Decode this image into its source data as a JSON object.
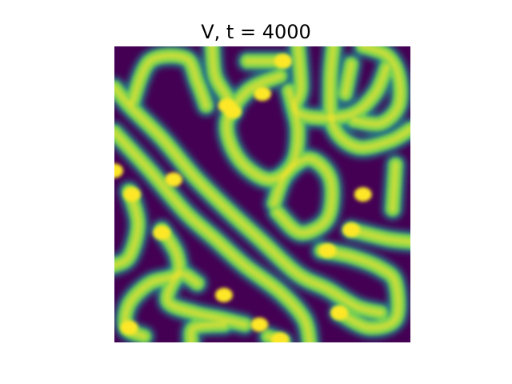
{
  "chart_data": {
    "type": "heatmap",
    "title": "V, t = 4000",
    "colormap": "viridis",
    "colors": {
      "low": "#440154",
      "mid": "#21918c",
      "high": "#fde725",
      "stripe": "#7ad151",
      "background": "#ffffff"
    },
    "axes_visible": false,
    "grid": false,
    "xlim": [
      0,
      1
    ],
    "ylim": [
      0,
      1
    ],
    "stripes": [
      [
        [
          0.06,
          0.19
        ],
        [
          0.12,
          0.05
        ],
        [
          0.24,
          0.04
        ],
        [
          0.28,
          0.12
        ],
        [
          0.31,
          0.2
        ]
      ],
      [
        [
          0.33,
          0.0
        ],
        [
          0.34,
          0.1
        ],
        [
          0.38,
          0.17
        ],
        [
          0.4,
          0.22
        ]
      ],
      [
        [
          0.45,
          0.05
        ],
        [
          0.57,
          0.05
        ]
      ],
      [
        [
          0.0,
          0.29
        ],
        [
          0.12,
          0.42
        ],
        [
          0.24,
          0.56
        ],
        [
          0.34,
          0.65
        ],
        [
          0.44,
          0.74
        ],
        [
          0.56,
          0.83
        ],
        [
          0.64,
          0.92
        ],
        [
          0.66,
          1.0
        ]
      ],
      [
        [
          0.0,
          0.14
        ],
        [
          0.06,
          0.21
        ],
        [
          0.16,
          0.31
        ],
        [
          0.27,
          0.44
        ],
        [
          0.38,
          0.55
        ],
        [
          0.5,
          0.66
        ],
        [
          0.62,
          0.77
        ],
        [
          0.72,
          0.82
        ],
        [
          0.82,
          0.88
        ],
        [
          0.9,
          0.9
        ]
      ],
      [
        [
          0.56,
          0.1
        ],
        [
          0.45,
          0.15
        ],
        [
          0.38,
          0.26
        ],
        [
          0.42,
          0.38
        ],
        [
          0.52,
          0.45
        ],
        [
          0.6,
          0.4
        ],
        [
          0.62,
          0.28
        ],
        [
          0.59,
          0.15
        ]
      ],
      [
        [
          0.54,
          0.53
        ],
        [
          0.58,
          0.43
        ],
        [
          0.66,
          0.38
        ],
        [
          0.73,
          0.45
        ],
        [
          0.72,
          0.58
        ],
        [
          0.63,
          0.63
        ],
        [
          0.55,
          0.56
        ]
      ],
      [
        [
          0.62,
          0.0
        ],
        [
          0.63,
          0.14
        ],
        [
          0.61,
          0.21
        ],
        [
          0.67,
          0.24
        ],
        [
          0.8,
          0.23
        ],
        [
          0.88,
          0.16
        ],
        [
          0.92,
          0.07
        ]
      ],
      [
        [
          0.74,
          0.0
        ],
        [
          0.73,
          0.12
        ],
        [
          0.74,
          0.27
        ],
        [
          0.82,
          0.34
        ],
        [
          0.93,
          0.32
        ],
        [
          1.0,
          0.28
        ]
      ],
      [
        [
          0.84,
          0.0
        ],
        [
          0.92,
          0.03
        ],
        [
          0.96,
          0.1
        ],
        [
          0.96,
          0.2
        ],
        [
          0.9,
          0.26
        ],
        [
          0.81,
          0.25
        ]
      ],
      [
        [
          0.8,
          0.06
        ],
        [
          0.78,
          0.16
        ]
      ],
      [
        [
          0.95,
          0.4
        ],
        [
          0.94,
          0.55
        ]
      ],
      [
        [
          0.8,
          0.62
        ],
        [
          0.92,
          0.65
        ],
        [
          1.0,
          0.66
        ]
      ],
      [
        [
          0.7,
          0.69
        ],
        [
          0.8,
          0.71
        ],
        [
          0.9,
          0.75
        ],
        [
          0.95,
          0.8
        ],
        [
          0.95,
          0.92
        ],
        [
          0.86,
          0.95
        ],
        [
          0.76,
          0.9
        ]
      ],
      [
        [
          0.05,
          0.49
        ],
        [
          0.08,
          0.6
        ],
        [
          0.05,
          0.71
        ],
        [
          0.0,
          0.74
        ]
      ],
      [
        [
          0.16,
          0.62
        ],
        [
          0.21,
          0.7
        ],
        [
          0.21,
          0.77
        ],
        [
          0.12,
          0.8
        ],
        [
          0.05,
          0.87
        ],
        [
          0.04,
          0.95
        ],
        [
          0.1,
          0.98
        ]
      ],
      [
        [
          0.28,
          0.8
        ],
        [
          0.22,
          0.77
        ],
        [
          0.18,
          0.86
        ],
        [
          0.27,
          0.9
        ],
        [
          0.36,
          0.92
        ],
        [
          0.44,
          0.94
        ]
      ],
      [
        [
          0.26,
          1.0
        ],
        [
          0.27,
          0.95
        ],
        [
          0.37,
          0.94
        ]
      ],
      [
        [
          0.52,
          0.98
        ],
        [
          0.57,
          1.0
        ]
      ]
    ],
    "hotspots": [
      [
        0.5,
        0.16
      ],
      [
        0.38,
        0.2
      ],
      [
        0.4,
        0.22
      ],
      [
        0.2,
        0.45
      ],
      [
        0.0,
        0.42
      ],
      [
        0.06,
        0.5
      ],
      [
        0.84,
        0.5
      ],
      [
        0.8,
        0.62
      ],
      [
        0.72,
        0.69
      ],
      [
        0.37,
        0.84
      ],
      [
        0.49,
        0.94
      ],
      [
        0.56,
        0.99
      ],
      [
        0.05,
        0.95
      ],
      [
        0.57,
        0.05
      ],
      [
        0.76,
        0.9
      ],
      [
        0.16,
        0.63
      ]
    ]
  }
}
